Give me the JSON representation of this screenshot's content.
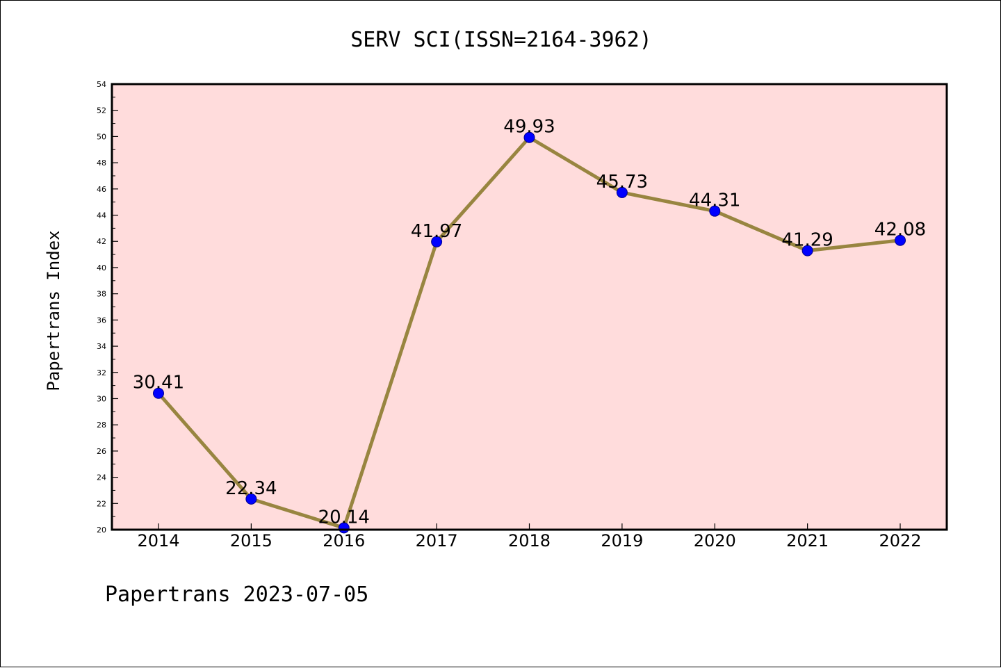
{
  "chart_data": {
    "type": "line",
    "title": "SERV SCI(ISSN=2164-3962)",
    "ylabel": "Papertrans Index",
    "xlabel": "",
    "footer": "Papertrans 2023-07-05",
    "categories": [
      "2014",
      "2015",
      "2016",
      "2017",
      "2018",
      "2019",
      "2020",
      "2021",
      "2022"
    ],
    "series": [
      {
        "values": [
          30.41,
          22.34,
          20.14,
          41.97,
          49.93,
          45.73,
          44.31,
          41.29,
          42.08
        ],
        "labels": [
          "30.41",
          "22.34",
          "20.14",
          "41.97",
          "49.93",
          "45.73",
          "44.31",
          "41.29",
          "42.08"
        ]
      }
    ],
    "ylim": [
      20,
      54
    ],
    "yticks": [
      "20",
      "22",
      "24",
      "26",
      "28",
      "30",
      "32",
      "34",
      "36",
      "38",
      "40",
      "42",
      "44",
      "46",
      "48",
      "50",
      "52",
      "54"
    ],
    "grid": false,
    "colors": {
      "plot_background": "#ffdcdc",
      "line": "#988540",
      "marker": "#0000ff",
      "marker_edge": "#00008b"
    }
  }
}
